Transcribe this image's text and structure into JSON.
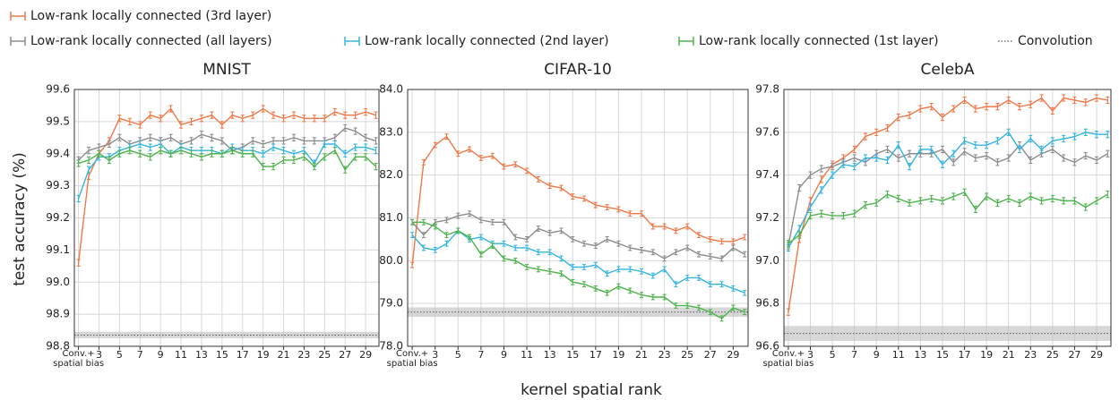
{
  "chart_data": [
    {
      "type": "line",
      "title": "MNIST",
      "ylabel": "test accuracy (%)",
      "x": [
        1,
        2,
        3,
        4,
        5,
        6,
        7,
        8,
        9,
        10,
        11,
        12,
        13,
        14,
        15,
        16,
        17,
        18,
        19,
        20,
        21,
        22,
        23,
        24,
        25,
        26,
        27,
        28,
        29,
        30
      ],
      "xlim": [
        0.6,
        30.3
      ],
      "xticks": [
        {
          "value": 1,
          "label": "Conv.+ spatial bias"
        },
        3,
        5,
        7,
        9,
        11,
        13,
        15,
        17,
        19,
        21,
        23,
        25,
        27,
        29
      ],
      "ylim": [
        98.8,
        99.6
      ],
      "yticks": [
        98.8,
        98.9,
        {
          "value": 99,
          "label": "99.0"
        },
        99.1,
        99.2,
        99.3,
        99.4,
        99.5,
        99.6
      ],
      "grid": true,
      "convolution": {
        "name": "Convolution",
        "value": 98.835,
        "error": 0.01,
        "color": "#555555"
      },
      "series": [
        {
          "name": "Low-rank locally connected (3rd layer)",
          "color": "#f07848",
          "error": 0.01,
          "values": [
            99.06,
            99.33,
            99.4,
            99.44,
            99.51,
            99.5,
            99.49,
            99.52,
            99.51,
            99.54,
            99.49,
            99.5,
            99.51,
            99.52,
            99.49,
            99.52,
            99.51,
            99.52,
            99.54,
            99.52,
            99.51,
            99.52,
            99.51,
            99.51,
            99.51,
            99.53,
            99.52,
            99.52,
            99.53,
            99.52
          ]
        },
        {
          "name": "Low-rank locally connected (all layers)",
          "color": "#8c8c8c",
          "error": 0.01,
          "values": [
            99.38,
            99.41,
            99.42,
            99.43,
            99.45,
            99.43,
            99.44,
            99.45,
            99.44,
            99.45,
            99.43,
            99.44,
            99.46,
            99.45,
            99.44,
            99.41,
            99.42,
            99.44,
            99.43,
            99.44,
            99.44,
            99.45,
            99.44,
            99.44,
            99.44,
            99.45,
            99.48,
            99.47,
            99.45,
            99.44
          ]
        },
        {
          "name": "Low-rank locally connected (2nd layer)",
          "color": "#35b4e0",
          "error": 0.01,
          "values": [
            99.26,
            99.35,
            99.39,
            99.39,
            99.41,
            99.42,
            99.43,
            99.42,
            99.43,
            99.4,
            99.42,
            99.41,
            99.41,
            99.41,
            99.4,
            99.42,
            99.41,
            99.41,
            99.4,
            99.42,
            99.41,
            99.4,
            99.41,
            99.37,
            99.43,
            99.43,
            99.4,
            99.42,
            99.42,
            99.41
          ]
        },
        {
          "name": "Low-rank locally connected (1st layer)",
          "color": "#4db34d",
          "error": 0.01,
          "values": [
            99.37,
            99.38,
            99.4,
            99.38,
            99.4,
            99.41,
            99.4,
            99.39,
            99.41,
            99.4,
            99.41,
            99.4,
            99.39,
            99.4,
            99.4,
            99.41,
            99.4,
            99.4,
            99.36,
            99.36,
            99.38,
            99.38,
            99.39,
            99.36,
            99.39,
            99.41,
            99.35,
            99.39,
            99.39,
            99.36
          ]
        }
      ]
    },
    {
      "type": "line",
      "title": "CIFAR-10",
      "xlabel": "kernel spatial rank",
      "x": [
        1,
        2,
        3,
        4,
        5,
        6,
        7,
        8,
        9,
        10,
        11,
        12,
        13,
        14,
        15,
        16,
        17,
        18,
        19,
        20,
        21,
        22,
        23,
        24,
        25,
        26,
        27,
        28,
        29,
        30
      ],
      "xlim": [
        0.6,
        30.3
      ],
      "xticks": [
        {
          "value": 1,
          "label": "Conv.+ spatial bias"
        },
        3,
        5,
        7,
        9,
        11,
        13,
        15,
        17,
        19,
        21,
        23,
        25,
        27,
        29
      ],
      "ylim": [
        78,
        84
      ],
      "yticks": [
        {
          "value": 78,
          "label": "78.0"
        },
        {
          "value": 79,
          "label": "79.0"
        },
        {
          "value": 80,
          "label": "80.0"
        },
        {
          "value": 81,
          "label": "81.0"
        },
        {
          "value": 82,
          "label": "82.0"
        },
        {
          "value": 83,
          "label": "83.0"
        },
        {
          "value": 84,
          "label": "84.0"
        }
      ],
      "grid": true,
      "convolution": {
        "value": 78.8,
        "error": 0.11,
        "color": "#555555"
      },
      "series": [
        {
          "color": "#f07848",
          "error": 0.06,
          "values": [
            79.9,
            82.3,
            82.7,
            82.9,
            82.5,
            82.6,
            82.4,
            82.45,
            82.2,
            82.25,
            82.1,
            81.9,
            81.75,
            81.7,
            81.5,
            81.45,
            81.3,
            81.25,
            81.2,
            81.1,
            81.1,
            80.8,
            80.8,
            80.7,
            80.8,
            80.6,
            80.5,
            80.45,
            80.45,
            80.55
          ]
        },
        {
          "color": "#8c8c8c",
          "error": 0.06,
          "values": [
            80.9,
            80.6,
            80.9,
            80.95,
            81.05,
            81.1,
            80.95,
            80.9,
            80.9,
            80.55,
            80.5,
            80.75,
            80.65,
            80.7,
            80.5,
            80.4,
            80.35,
            80.5,
            80.4,
            80.3,
            80.25,
            80.2,
            80.05,
            80.2,
            80.3,
            80.15,
            80.1,
            80.05,
            80.3,
            80.15
          ]
        },
        {
          "color": "#35b4e0",
          "error": 0.06,
          "values": [
            80.6,
            80.3,
            80.25,
            80.4,
            80.7,
            80.5,
            80.55,
            80.4,
            80.4,
            80.3,
            80.3,
            80.2,
            80.2,
            80.05,
            79.85,
            79.85,
            79.9,
            79.7,
            79.8,
            79.8,
            79.75,
            79.65,
            79.8,
            79.45,
            79.6,
            79.6,
            79.45,
            79.45,
            79.35,
            79.25
          ]
        },
        {
          "color": "#4db34d",
          "error": 0.06,
          "values": [
            80.9,
            80.9,
            80.8,
            80.6,
            80.7,
            80.55,
            80.15,
            80.35,
            80.05,
            80.0,
            79.85,
            79.8,
            79.75,
            79.7,
            79.5,
            79.45,
            79.35,
            79.25,
            79.4,
            79.3,
            79.2,
            79.15,
            79.15,
            78.95,
            78.95,
            78.9,
            78.8,
            78.65,
            78.9,
            78.8
          ]
        }
      ]
    },
    {
      "type": "line",
      "title": "CelebA",
      "x": [
        1,
        2,
        3,
        4,
        5,
        6,
        7,
        8,
        9,
        10,
        11,
        12,
        13,
        14,
        15,
        16,
        17,
        18,
        19,
        20,
        21,
        22,
        23,
        24,
        25,
        26,
        27,
        28,
        29,
        30
      ],
      "xlim": [
        0.6,
        30.3
      ],
      "xticks": [
        {
          "value": 1,
          "label": "Conv.+ spatial bias"
        },
        3,
        5,
        7,
        9,
        11,
        13,
        15,
        17,
        19,
        21,
        23,
        25,
        27,
        29
      ],
      "ylim": [
        96.6,
        97.8
      ],
      "yticks": [
        96.6,
        96.8,
        {
          "value": 97,
          "label": "97.0"
        },
        97.2,
        97.4,
        97.6,
        97.8
      ],
      "grid": true,
      "convolution": {
        "value": 96.66,
        "error": 0.035,
        "color": "#555555"
      },
      "series": [
        {
          "color": "#f07848",
          "error": 0.015,
          "values": [
            96.76,
            97.1,
            97.28,
            97.38,
            97.45,
            97.48,
            97.52,
            97.58,
            97.6,
            97.62,
            97.67,
            97.68,
            97.71,
            97.72,
            97.67,
            97.71,
            97.75,
            97.71,
            97.72,
            97.72,
            97.75,
            97.72,
            97.73,
            97.76,
            97.7,
            97.76,
            97.75,
            97.74,
            97.76,
            97.75
          ]
        },
        {
          "color": "#8c8c8c",
          "error": 0.015,
          "values": [
            97.07,
            97.34,
            97.4,
            97.43,
            97.44,
            97.46,
            97.48,
            97.46,
            97.5,
            97.52,
            97.48,
            97.5,
            97.5,
            97.5,
            97.52,
            97.46,
            97.51,
            97.48,
            97.49,
            97.46,
            97.48,
            97.54,
            97.47,
            97.5,
            97.52,
            97.48,
            97.46,
            97.49,
            97.47,
            97.5
          ]
        },
        {
          "color": "#35b4e0",
          "error": 0.015,
          "values": [
            97.06,
            97.15,
            97.25,
            97.33,
            97.4,
            97.45,
            97.44,
            97.48,
            97.48,
            97.47,
            97.54,
            97.44,
            97.52,
            97.52,
            97.45,
            97.5,
            97.56,
            97.54,
            97.54,
            97.56,
            97.6,
            97.52,
            97.57,
            97.52,
            97.56,
            97.57,
            97.58,
            97.6,
            97.59,
            97.59
          ]
        },
        {
          "color": "#4db34d",
          "error": 0.015,
          "values": [
            97.08,
            97.12,
            97.21,
            97.22,
            97.21,
            97.21,
            97.22,
            97.26,
            97.27,
            97.31,
            97.29,
            97.27,
            97.28,
            97.29,
            97.28,
            97.3,
            97.32,
            97.24,
            97.3,
            97.27,
            97.29,
            97.27,
            97.3,
            97.28,
            97.29,
            97.28,
            97.28,
            97.25,
            97.28,
            97.31
          ]
        }
      ]
    }
  ]
}
